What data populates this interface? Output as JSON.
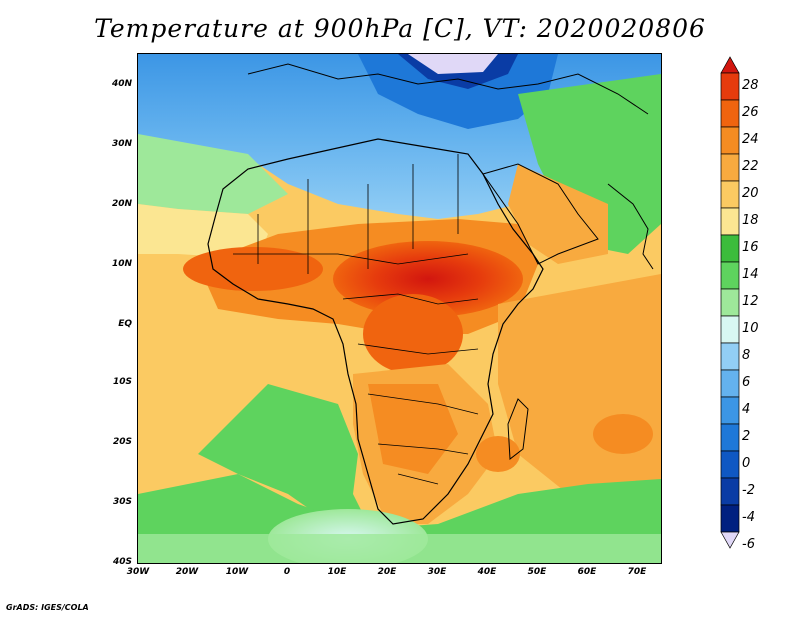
{
  "title": "Temperature at 900hPa [C], VT: 2020020806",
  "credit": "GrADS: IGES/COLA",
  "x_axis_labels": [
    "30W",
    "20W",
    "10W",
    "0",
    "10E",
    "20E",
    "30E",
    "40E",
    "50E",
    "60E",
    "70E"
  ],
  "y_axis_labels": [
    "40N",
    "30N",
    "20N",
    "10N",
    "EQ",
    "10S",
    "20S",
    "30S",
    "40S"
  ],
  "colorbar": {
    "labels": [
      "28",
      "26",
      "24",
      "22",
      "20",
      "18",
      "16",
      "14",
      "12",
      "10",
      "8",
      "6",
      "4",
      "2",
      "0",
      "-2",
      "-4",
      "-6"
    ],
    "colors": [
      "#d2160f",
      "#e63b0d",
      "#f0640f",
      "#f58c22",
      "#f8aa3f",
      "#fbca62",
      "#fbe692",
      "#3cbc3c",
      "#5ed35e",
      "#9ee89a",
      "#d8f7f2",
      "#92cef5",
      "#64b2ee",
      "#3c96e5",
      "#1e78d8",
      "#0f58c3",
      "#0a3ca5",
      "#002080",
      "#e0d8f7"
    ]
  },
  "map_colors": {
    "ocean_cool": "#5ed35e",
    "ocean_mid": "#fbca62",
    "sahara_cold": "#3c96e5",
    "europe_cold": "#1e78d8",
    "land_hot": "#e63b0d",
    "land_warm": "#f58c22",
    "boundary": "#000000"
  }
}
